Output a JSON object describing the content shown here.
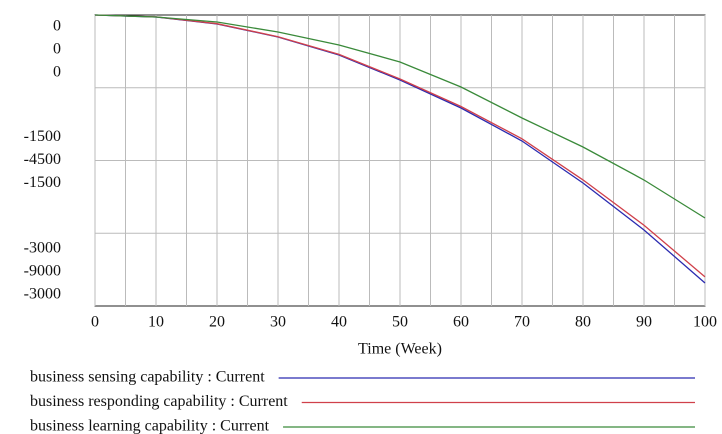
{
  "chart_data": {
    "type": "line",
    "xlabel": "Time (Week)",
    "x": [
      0,
      10,
      20,
      30,
      40,
      50,
      60,
      70,
      80,
      90,
      100
    ],
    "xlim": [
      0,
      100
    ],
    "xticks": [
      0,
      10,
      20,
      30,
      40,
      50,
      60,
      70,
      80,
      90,
      100
    ],
    "grid": true,
    "series": [
      {
        "name": "business sensing capability : Current",
        "color": "#2b2bb0",
        "ylim": [
          -3000,
          0
        ],
        "yticks": [
          0,
          -1500,
          -3000
        ],
        "values": [
          0,
          -21,
          -93,
          -227,
          -412,
          -670,
          -959,
          -1299,
          -1732,
          -2216,
          -2763
        ]
      },
      {
        "name": "business responding capability : Current",
        "color": "#d0404a",
        "ylim": [
          -9000,
          0
        ],
        "yticks": [
          0,
          -4500,
          -9000
        ],
        "values": [
          0,
          -60,
          -270,
          -670,
          -1220,
          -1980,
          -2830,
          -3830,
          -5100,
          -6500,
          -8100
        ]
      },
      {
        "name": "business learning capability : Current",
        "color": "#3a8a3a",
        "ylim": [
          -3000,
          0
        ],
        "yticks": [
          0,
          -1500,
          -3000
        ],
        "values": [
          0,
          -21,
          -72,
          -175,
          -309,
          -485,
          -742,
          -1062,
          -1361,
          -1701,
          -2093
        ]
      }
    ]
  }
}
